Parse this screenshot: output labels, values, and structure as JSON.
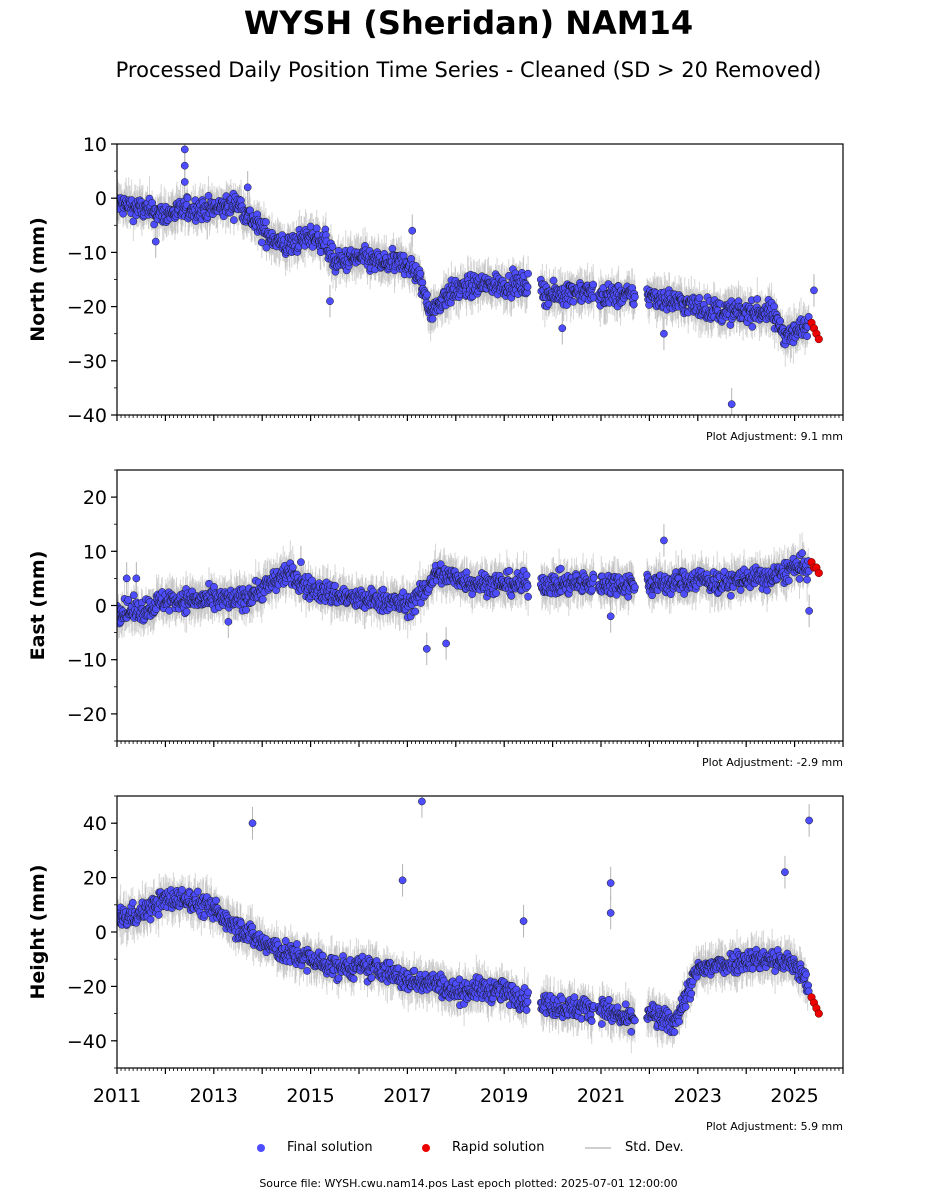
{
  "title": "WYSH (Sheridan) NAM14",
  "subtitle": "Processed Daily Position Time Series - Cleaned (SD > 20 Removed)",
  "legend": {
    "final": "Final solution",
    "rapid": "Rapid solution",
    "std": "Std. Dev."
  },
  "footer": "Source file: WYSH.cwu.nam14.pos  Last epoch plotted: 2025-07-01 12:00:00",
  "colors": {
    "final": "#4d4dff",
    "rapid": "#ee0000",
    "std": "#b4b4b4",
    "edge": "#1a1a1a"
  },
  "chart_data": [
    {
      "type": "scatter",
      "ylabel": "North (mm)",
      "xlim": [
        2011,
        2026
      ],
      "ylim": [
        -40,
        10
      ],
      "yticks": [
        -40,
        -30,
        -20,
        -10,
        0,
        10
      ],
      "xticks": [
        2011,
        2013,
        2015,
        2017,
        2019,
        2021,
        2023,
        2025
      ],
      "show_xtick_labels": false,
      "adjustment": "Plot Adjustment: 9.1 mm",
      "series": [
        {
          "name": "Final solution",
          "x": [
            2011.0,
            2011.5,
            2012.0,
            2012.5,
            2013.0,
            2013.5,
            2014.0,
            2014.5,
            2015.0,
            2015.3,
            2015.5,
            2016.0,
            2016.5,
            2017.0,
            2017.2,
            2017.5,
            2017.8,
            2018.0,
            2018.5,
            2019.0,
            2019.5,
            2020.0,
            2020.5,
            2021.0,
            2021.5,
            2022.0,
            2022.5,
            2023.0,
            2023.5,
            2024.0,
            2024.5,
            2024.8,
            2025.0,
            2025.3
          ],
          "y": [
            -1,
            -2,
            -3,
            -2,
            -2,
            -1,
            -6,
            -9,
            -7,
            -8,
            -12,
            -11,
            -12,
            -12,
            -14,
            -21,
            -18,
            -17,
            -16,
            -16,
            -16,
            -18,
            -17,
            -18,
            -18,
            -18,
            -19,
            -20,
            -21,
            -21,
            -21,
            -25,
            -25,
            -23
          ]
        },
        {
          "name": "Rapid solution",
          "x": [
            2025.35,
            2025.4,
            2025.45,
            2025.5
          ],
          "y": [
            -23,
            -24,
            -25,
            -26
          ]
        }
      ],
      "outliers": {
        "x": [
          2012.4,
          2012.4,
          2012.4,
          2013.7,
          2015.4,
          2017.1,
          2020.2,
          2022.3,
          2023.7,
          2025.4,
          2011.8
        ],
        "y": [
          9,
          6,
          3,
          2,
          -19,
          -6,
          -24,
          -25,
          -38,
          -17,
          -8
        ]
      },
      "gaps": [
        [
          2019.5,
          2019.75
        ],
        [
          2020.85,
          2020.95
        ],
        [
          2021.7,
          2021.95
        ]
      ]
    },
    {
      "type": "scatter",
      "ylabel": "East (mm)",
      "xlim": [
        2011,
        2026
      ],
      "ylim": [
        -25,
        25
      ],
      "yticks": [
        -20,
        -10,
        0,
        10,
        20
      ],
      "xticks": [
        2011,
        2013,
        2015,
        2017,
        2019,
        2021,
        2023,
        2025
      ],
      "show_xtick_labels": false,
      "adjustment": "Plot Adjustment: -2.9 mm",
      "series": [
        {
          "name": "Final solution",
          "x": [
            2011.0,
            2011.5,
            2012.0,
            2012.5,
            2013.0,
            2013.5,
            2014.0,
            2014.5,
            2015.0,
            2015.5,
            2016.0,
            2016.5,
            2017.0,
            2017.3,
            2017.6,
            2018.0,
            2018.5,
            2019.0,
            2019.5,
            2020.0,
            2020.5,
            2021.0,
            2021.5,
            2022.0,
            2022.5,
            2023.0,
            2023.5,
            2024.0,
            2024.5,
            2025.0,
            2025.3
          ],
          "y": [
            -1,
            -1,
            1,
            1,
            1,
            1,
            3,
            6,
            3,
            2,
            1,
            1,
            0,
            2,
            6,
            5,
            4,
            4,
            4,
            4,
            4,
            4,
            4,
            4,
            4,
            5,
            4,
            5,
            5,
            7,
            7
          ]
        },
        {
          "name": "Rapid solution",
          "x": [
            2025.35,
            2025.4,
            2025.45,
            2025.5
          ],
          "y": [
            8,
            7,
            7,
            6
          ]
        }
      ],
      "outliers": {
        "x": [
          2011.2,
          2011.4,
          2013.3,
          2014.8,
          2017.4,
          2017.8,
          2021.2,
          2022.3,
          2025.3
        ],
        "y": [
          5,
          5,
          -3,
          8,
          -8,
          -7,
          -2,
          12,
          -1
        ]
      },
      "gaps": [
        [
          2019.5,
          2019.75
        ],
        [
          2020.85,
          2020.95
        ],
        [
          2021.7,
          2021.95
        ]
      ]
    },
    {
      "type": "scatter",
      "ylabel": "Height (mm)",
      "xlim": [
        2011,
        2026
      ],
      "ylim": [
        -50,
        50
      ],
      "yticks": [
        -40,
        -20,
        0,
        20,
        40
      ],
      "xticks": [
        2011,
        2013,
        2015,
        2017,
        2019,
        2021,
        2023,
        2025
      ],
      "show_xtick_labels": true,
      "adjustment": "Plot Adjustment: 5.9 mm",
      "series": [
        {
          "name": "Final solution",
          "x": [
            2011.0,
            2011.5,
            2012.0,
            2012.5,
            2013.0,
            2013.5,
            2014.0,
            2014.5,
            2015.0,
            2015.5,
            2016.0,
            2016.5,
            2017.0,
            2017.5,
            2018.0,
            2018.5,
            2019.0,
            2019.5,
            2020.0,
            2020.5,
            2021.0,
            2021.5,
            2022.0,
            2022.5,
            2023.0,
            2023.5,
            2024.0,
            2024.5,
            2025.0,
            2025.3
          ],
          "y": [
            5,
            7,
            12,
            12,
            8,
            2,
            -4,
            -8,
            -10,
            -13,
            -13,
            -14,
            -18,
            -18,
            -22,
            -21,
            -22,
            -25,
            -27,
            -28,
            -28,
            -32,
            -30,
            -34,
            -14,
            -12,
            -10,
            -10,
            -12,
            -20
          ]
        },
        {
          "name": "Rapid solution",
          "x": [
            2025.35,
            2025.4,
            2025.45,
            2025.5
          ],
          "y": [
            -24,
            -26,
            -28,
            -30
          ]
        }
      ],
      "outliers": {
        "x": [
          2013.8,
          2017.3,
          2016.9,
          2021.2,
          2021.2,
          2025.3,
          2024.8,
          2019.4
        ],
        "y": [
          40,
          48,
          19,
          18,
          7,
          41,
          22,
          4
        ]
      },
      "gaps": [
        [
          2019.5,
          2019.75
        ],
        [
          2020.85,
          2020.95
        ],
        [
          2021.7,
          2021.95
        ]
      ]
    }
  ]
}
